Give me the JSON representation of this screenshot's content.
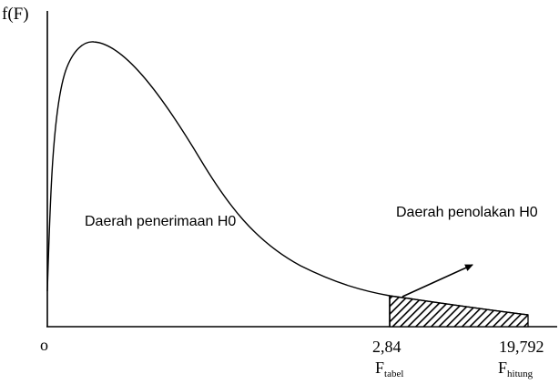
{
  "diagram": {
    "y_axis_label": "f(F)",
    "origin_label": "o",
    "acceptance_label": "Daerah penerimaan H0",
    "rejection_label": "Daerah penolakan H0",
    "critical_value": "2,84",
    "critical_symbol": "F",
    "critical_subscript": "tabel",
    "computed_value": "19,792",
    "computed_symbol": "F",
    "computed_subscript": "hitung"
  }
}
